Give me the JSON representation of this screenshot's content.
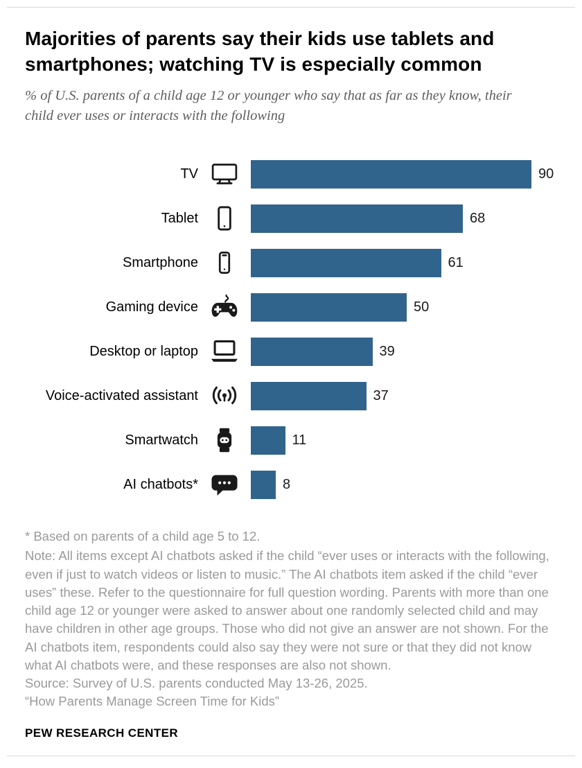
{
  "header": {
    "title": "Majorities of parents say their kids use tablets and smartphones; watching TV is especially common",
    "subtitle": "% of U.S. parents of a child age 12 or younger who say that as far as they know, their child ever uses or interacts with the following"
  },
  "chart_data": {
    "type": "bar",
    "orientation": "horizontal",
    "categories": [
      "TV",
      "Tablet",
      "Smartphone",
      "Gaming device",
      "Desktop or laptop",
      "Voice-activated assistant",
      "Smartwatch",
      "AI chatbots*"
    ],
    "values": [
      90,
      68,
      61,
      50,
      39,
      37,
      11,
      8
    ],
    "icons": [
      "tv-icon",
      "tablet-icon",
      "smartphone-icon",
      "gamepad-icon",
      "laptop-icon",
      "voice-assistant-icon",
      "smartwatch-icon",
      "chat-bubble-icon"
    ],
    "bar_color": "#31648c",
    "xlim": [
      0,
      100
    ],
    "value_labels": true,
    "grid": false,
    "legend": false
  },
  "footer": {
    "footnote": "* Based on parents of a child age 5 to 12.",
    "note": "Note: All items except AI chatbots asked if the child “ever uses or interacts with the following, even if just to watch videos or listen to music.” The AI chatbots item asked if the child “ever uses” these. Refer to the questionnaire for full question wording. Parents with more than one child age 12 or younger were asked to answer about one randomly selected child and may have children in other age groups. Those who did not give an answer are not shown. For the AI chatbots item, respondents could also say they were not sure or that they did not know what AI chatbots were, and these responses are also not shown.",
    "source": "Source: Survey of U.S. parents conducted May 13-26, 2025.",
    "report": "“How Parents Manage Screen Time for Kids”",
    "brand": "PEW RESEARCH CENTER"
  }
}
